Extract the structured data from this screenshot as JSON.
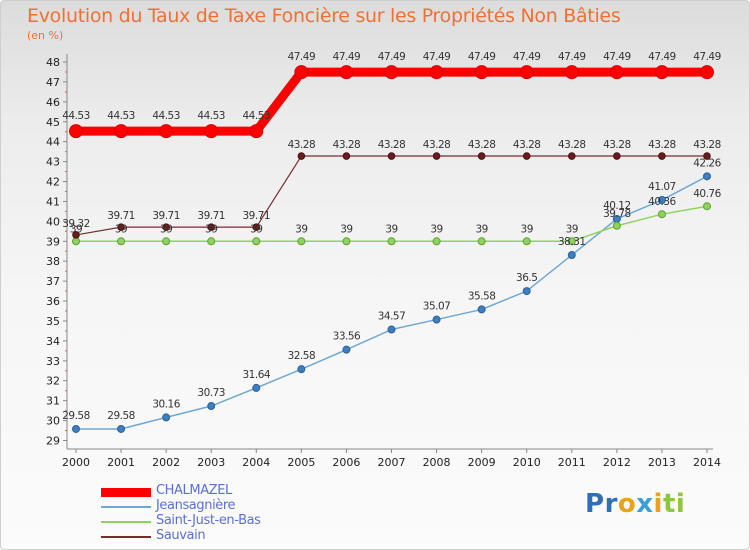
{
  "title": "Evolution du Taux de Taxe Foncière sur les Propriétés Non Bâties",
  "subtitle": "(en %)",
  "logo": [
    "P",
    "r",
    "o",
    "x",
    "i",
    "t",
    "i"
  ],
  "colors": {
    "title": "#f07033",
    "legend_text": "#5a6fd6",
    "logo": [
      "#2f6fb5",
      "#2f6fb5",
      "#e8a21b",
      "#3aa0d8",
      "#e8a21b",
      "#8dc63f",
      "#8dc63f"
    ]
  },
  "chart_data": {
    "type": "line",
    "title": "Evolution du Taux de Taxe Foncière sur les Propriétés Non Bâties",
    "ylabel": "(en %)",
    "xlabel": "",
    "ylim": [
      29,
      48
    ],
    "grid": false,
    "legend_position": "bottom-left",
    "x": [
      "2000",
      "2001",
      "2002",
      "2003",
      "2004",
      "2005",
      "2006",
      "2007",
      "2008",
      "2009",
      "2010",
      "2011",
      "2012",
      "2013",
      "2014"
    ],
    "y_ticks": [
      "29",
      "30",
      "31",
      "32",
      "33",
      "34",
      "35",
      "36",
      "37",
      "38",
      "39",
      "40",
      "41",
      "42",
      "43",
      "44",
      "45",
      "46",
      "47",
      "48"
    ],
    "series": [
      {
        "name": "CHALMAZEL",
        "color": "#ff0000",
        "values": [
          44.53,
          44.53,
          44.53,
          44.53,
          44.53,
          47.49,
          47.49,
          47.49,
          47.49,
          47.49,
          47.49,
          47.49,
          47.49,
          47.49,
          47.49
        ],
        "labels": [
          "44.53",
          "44.53",
          "44.53",
          "44.53",
          "44.53",
          "47.49",
          "47.49",
          "47.49",
          "47.49",
          "47.49",
          "47.49",
          "47.49",
          "47.49",
          "47.49",
          "47.49"
        ]
      },
      {
        "name": "Jeansagnière",
        "color": "#6fa8d6",
        "values": [
          29.58,
          29.58,
          30.16,
          30.73,
          31.64,
          32.58,
          33.56,
          34.57,
          35.07,
          35.58,
          36.5,
          38.31,
          40.12,
          41.07,
          42.26
        ],
        "labels": [
          "29.58",
          "29.58",
          "30.16",
          "30.73",
          "31.64",
          "32.58",
          "33.56",
          "34.57",
          "35.07",
          "35.58",
          "36.5",
          "38.31",
          "40.12",
          "41.07",
          "42.26"
        ]
      },
      {
        "name": "Saint-Just-en-Bas",
        "color": "#8ed45a",
        "values": [
          39,
          39,
          39,
          39,
          39,
          39,
          39,
          39,
          39,
          39,
          39,
          39,
          39.78,
          40.36,
          40.76
        ],
        "labels": [
          "39",
          "39",
          "39",
          "39",
          "39",
          "39",
          "39",
          "39",
          "39",
          "39",
          "39",
          "39",
          "39.78",
          "40.36",
          "40.76"
        ]
      },
      {
        "name": "Sauvain",
        "color": "#7a2b2b",
        "values": [
          39.32,
          39.71,
          39.71,
          39.71,
          39.71,
          43.28,
          43.28,
          43.28,
          43.28,
          43.28,
          43.28,
          43.28,
          43.28,
          43.28,
          43.28
        ],
        "labels": [
          "39.32",
          "39.71",
          "39.71",
          "39.71",
          "39.71",
          "43.28",
          "43.28",
          "43.28",
          "43.28",
          "43.28",
          "43.28",
          "43.28",
          "43.28",
          "43.28",
          "43.28"
        ]
      }
    ]
  }
}
